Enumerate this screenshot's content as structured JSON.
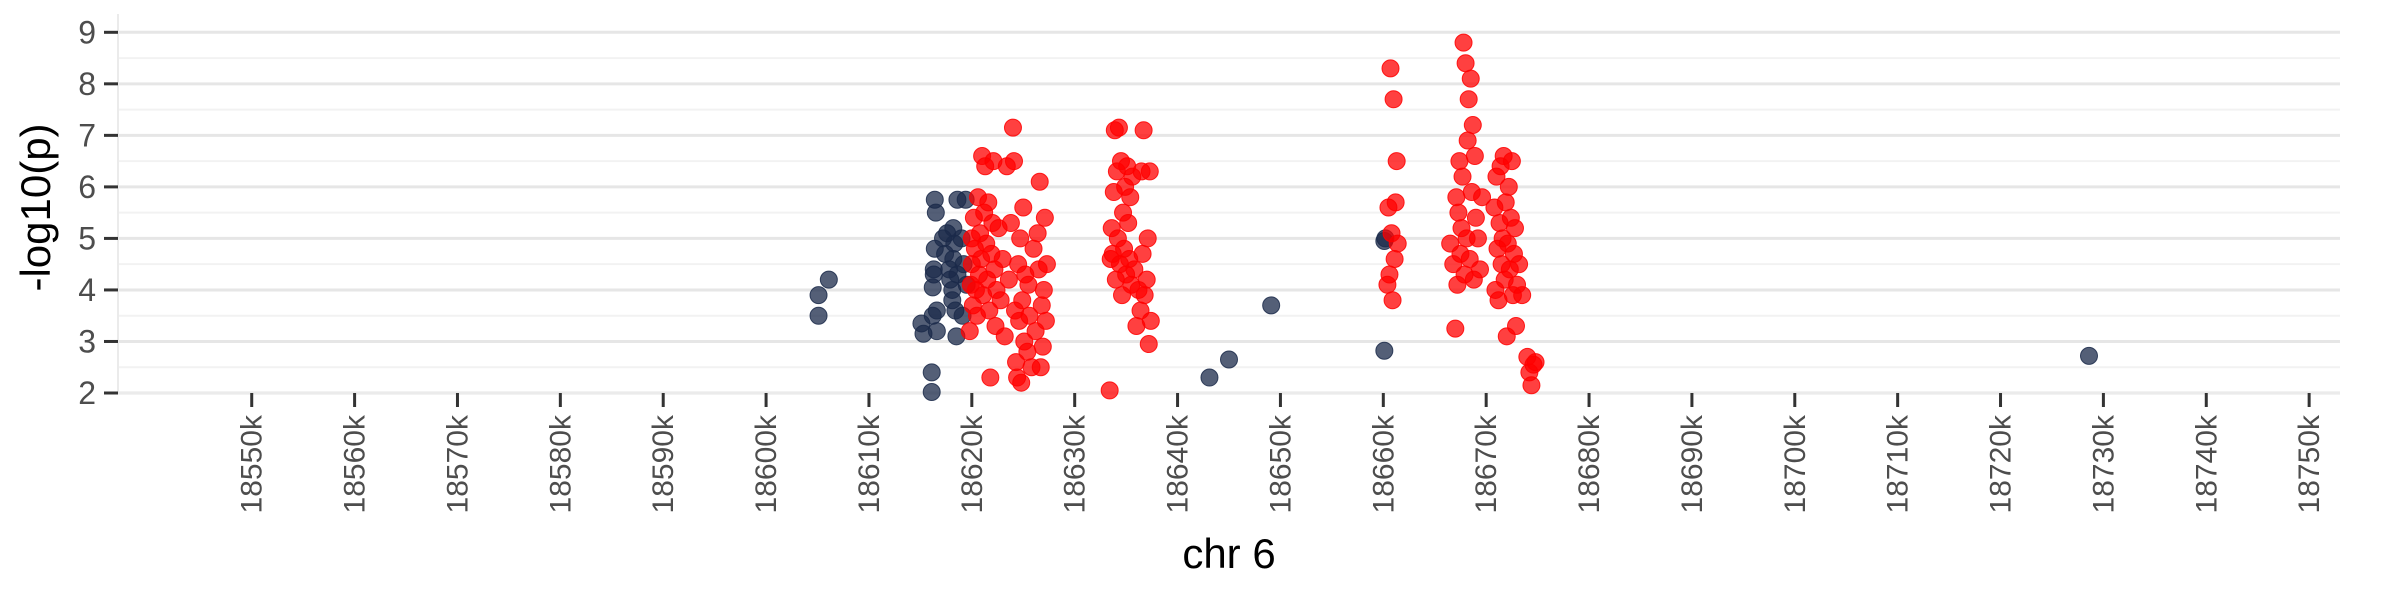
{
  "chart_data": {
    "type": "scatter",
    "xlabel": "chr 6",
    "ylabel": "-log10(p)",
    "xlim": [
      18537,
      18753
    ],
    "ylim": [
      2,
      9.2
    ],
    "x_unit": "bp",
    "x_ticks": [
      18550,
      18560,
      18570,
      18580,
      18590,
      18600,
      18610,
      18620,
      18630,
      18640,
      18650,
      18660,
      18670,
      18680,
      18690,
      18700,
      18710,
      18720,
      18730,
      18740,
      18750
    ],
    "x_tick_labels": [
      "18550k",
      "18560k",
      "18570k",
      "18580k",
      "18590k",
      "18600k",
      "18610k",
      "18620k",
      "18630k",
      "18640k",
      "18650k",
      "18660k",
      "18670k",
      "18680k",
      "18690k",
      "18700k",
      "18710k",
      "18720k",
      "18730k",
      "18740k",
      "18750k"
    ],
    "y_ticks": [
      2,
      3,
      4,
      5,
      6,
      7,
      8,
      9
    ],
    "y_tick_labels": [
      "2",
      "3",
      "4",
      "5",
      "6",
      "7",
      "8",
      "9"
    ],
    "grid": true,
    "legend": "none",
    "series": [
      {
        "color": "#1b2a4a",
        "points": [
          [
            18605.1,
            3.9
          ],
          [
            18605.1,
            3.5
          ],
          [
            18606.1,
            4.2
          ],
          [
            18615.1,
            3.35
          ],
          [
            18615.3,
            3.15
          ],
          [
            18616.1,
            2.4
          ],
          [
            18616.1,
            2.02
          ],
          [
            18616.2,
            3.5
          ],
          [
            18616.2,
            4.05
          ],
          [
            18616.3,
            4.3
          ],
          [
            18616.3,
            4.4
          ],
          [
            18616.4,
            4.8
          ],
          [
            18616.4,
            5.75
          ],
          [
            18616.5,
            5.5
          ],
          [
            18616.6,
            3.6
          ],
          [
            18616.6,
            3.2
          ],
          [
            18617.2,
            5.0
          ],
          [
            18617.4,
            4.7
          ],
          [
            18617.6,
            5.1
          ],
          [
            18617.8,
            4.4
          ],
          [
            18617.9,
            4.2
          ],
          [
            18618.1,
            3.8
          ],
          [
            18618.1,
            4.0
          ],
          [
            18618.2,
            4.6
          ],
          [
            18618.2,
            5.2
          ],
          [
            18618.3,
            4.9
          ],
          [
            18618.4,
            3.6
          ],
          [
            18618.5,
            3.1
          ],
          [
            18618.6,
            4.3
          ],
          [
            18618.6,
            5.75
          ],
          [
            18619.0,
            5.0
          ],
          [
            18619.1,
            3.5
          ],
          [
            18619.2,
            4.5
          ],
          [
            18619.4,
            5.75
          ],
          [
            18619.5,
            4.1
          ],
          [
            18643.1,
            2.3
          ],
          [
            18645.0,
            2.65
          ],
          [
            18649.1,
            3.7
          ],
          [
            18660.1,
            2.82
          ],
          [
            18660.1,
            4.95
          ],
          [
            18660.2,
            5.0
          ],
          [
            18728.6,
            2.72
          ]
        ]
      },
      {
        "color": "#ff0000",
        "points": [
          [
            18619.8,
            3.2
          ],
          [
            18619.9,
            4.1
          ],
          [
            18620.0,
            5.0
          ],
          [
            18620.0,
            4.5
          ],
          [
            18620.1,
            3.7
          ],
          [
            18620.2,
            5.4
          ],
          [
            18620.3,
            4.8
          ],
          [
            18620.4,
            4.0
          ],
          [
            18620.5,
            3.5
          ],
          [
            18620.6,
            5.8
          ],
          [
            18620.7,
            4.3
          ],
          [
            18620.8,
            5.1
          ],
          [
            18620.9,
            4.6
          ],
          [
            18621.0,
            6.6
          ],
          [
            18621.1,
            3.9
          ],
          [
            18621.2,
            5.5
          ],
          [
            18621.3,
            6.4
          ],
          [
            18621.4,
            4.9
          ],
          [
            18621.5,
            4.2
          ],
          [
            18621.6,
            5.7
          ],
          [
            18621.7,
            3.6
          ],
          [
            18621.8,
            2.3
          ],
          [
            18621.9,
            4.7
          ],
          [
            18622.0,
            5.3
          ],
          [
            18622.1,
            6.5
          ],
          [
            18622.2,
            4.4
          ],
          [
            18622.3,
            3.3
          ],
          [
            18622.4,
            4.0
          ],
          [
            18622.6,
            5.2
          ],
          [
            18622.8,
            3.8
          ],
          [
            18623.0,
            4.6
          ],
          [
            18623.2,
            3.1
          ],
          [
            18623.4,
            6.4
          ],
          [
            18623.6,
            4.2
          ],
          [
            18623.8,
            5.3
          ],
          [
            18624.0,
            7.15
          ],
          [
            18624.1,
            6.5
          ],
          [
            18624.2,
            3.6
          ],
          [
            18624.3,
            2.6
          ],
          [
            18624.4,
            2.3
          ],
          [
            18624.5,
            4.5
          ],
          [
            18624.6,
            3.4
          ],
          [
            18624.7,
            5.0
          ],
          [
            18624.8,
            2.2
          ],
          [
            18624.9,
            3.8
          ],
          [
            18625.0,
            5.6
          ],
          [
            18625.1,
            3.0
          ],
          [
            18625.2,
            4.3
          ],
          [
            18625.4,
            2.8
          ],
          [
            18625.5,
            4.1
          ],
          [
            18625.6,
            3.5
          ],
          [
            18625.8,
            2.5
          ],
          [
            18626.0,
            4.8
          ],
          [
            18626.2,
            3.2
          ],
          [
            18626.4,
            5.1
          ],
          [
            18626.5,
            4.4
          ],
          [
            18626.6,
            6.1
          ],
          [
            18626.7,
            2.5
          ],
          [
            18626.8,
            3.7
          ],
          [
            18626.9,
            2.9
          ],
          [
            18627.0,
            4.0
          ],
          [
            18627.1,
            5.4
          ],
          [
            18627.2,
            3.4
          ],
          [
            18627.3,
            4.5
          ],
          [
            18633.4,
            2.05
          ],
          [
            18633.5,
            4.6
          ],
          [
            18633.6,
            5.2
          ],
          [
            18633.7,
            4.7
          ],
          [
            18633.8,
            5.9
          ],
          [
            18633.9,
            7.1
          ],
          [
            18634.0,
            4.2
          ],
          [
            18634.1,
            6.3
          ],
          [
            18634.2,
            5.0
          ],
          [
            18634.3,
            7.15
          ],
          [
            18634.4,
            4.5
          ],
          [
            18634.5,
            6.5
          ],
          [
            18634.6,
            3.9
          ],
          [
            18634.7,
            5.5
          ],
          [
            18634.8,
            4.8
          ],
          [
            18634.9,
            6.0
          ],
          [
            18635.0,
            4.3
          ],
          [
            18635.1,
            6.4
          ],
          [
            18635.2,
            5.3
          ],
          [
            18635.3,
            4.6
          ],
          [
            18635.4,
            5.8
          ],
          [
            18635.5,
            4.1
          ],
          [
            18635.6,
            6.2
          ],
          [
            18635.8,
            4.4
          ],
          [
            18636.0,
            3.3
          ],
          [
            18636.2,
            4.0
          ],
          [
            18636.4,
            3.6
          ],
          [
            18636.5,
            6.3
          ],
          [
            18636.6,
            4.7
          ],
          [
            18636.7,
            7.1
          ],
          [
            18636.8,
            3.9
          ],
          [
            18637.0,
            4.2
          ],
          [
            18637.1,
            5.0
          ],
          [
            18637.2,
            2.95
          ],
          [
            18637.3,
            6.3
          ],
          [
            18637.4,
            3.4
          ],
          [
            18660.4,
            4.1
          ],
          [
            18660.5,
            5.6
          ],
          [
            18660.6,
            4.3
          ],
          [
            18660.7,
            8.3
          ],
          [
            18660.8,
            5.1
          ],
          [
            18660.9,
            3.8
          ],
          [
            18661.0,
            7.7
          ],
          [
            18661.1,
            4.6
          ],
          [
            18661.2,
            5.7
          ],
          [
            18661.3,
            6.5
          ],
          [
            18661.4,
            4.9
          ],
          [
            18666.5,
            4.9
          ],
          [
            18666.8,
            4.5
          ],
          [
            18667.0,
            3.25
          ],
          [
            18667.1,
            5.8
          ],
          [
            18667.2,
            4.1
          ],
          [
            18667.3,
            5.5
          ],
          [
            18667.4,
            6.5
          ],
          [
            18667.5,
            4.7
          ],
          [
            18667.6,
            5.2
          ],
          [
            18667.7,
            6.2
          ],
          [
            18667.8,
            8.8
          ],
          [
            18667.9,
            4.3
          ],
          [
            18668.0,
            8.4
          ],
          [
            18668.1,
            5.0
          ],
          [
            18668.2,
            6.9
          ],
          [
            18668.3,
            7.7
          ],
          [
            18668.4,
            4.6
          ],
          [
            18668.5,
            8.1
          ],
          [
            18668.6,
            5.9
          ],
          [
            18668.7,
            7.2
          ],
          [
            18668.8,
            4.2
          ],
          [
            18668.9,
            6.6
          ],
          [
            18669.0,
            5.4
          ],
          [
            18669.2,
            5.0
          ],
          [
            18669.4,
            4.4
          ],
          [
            18669.6,
            5.8
          ],
          [
            18670.8,
            5.6
          ],
          [
            18670.9,
            4.0
          ],
          [
            18671.0,
            6.2
          ],
          [
            18671.1,
            4.8
          ],
          [
            18671.2,
            3.8
          ],
          [
            18671.3,
            5.3
          ],
          [
            18671.4,
            6.4
          ],
          [
            18671.5,
            4.5
          ],
          [
            18671.6,
            5.0
          ],
          [
            18671.7,
            6.6
          ],
          [
            18671.8,
            4.2
          ],
          [
            18671.9,
            5.7
          ],
          [
            18672.0,
            3.1
          ],
          [
            18672.1,
            4.9
          ],
          [
            18672.2,
            6.0
          ],
          [
            18672.3,
            4.4
          ],
          [
            18672.4,
            5.4
          ],
          [
            18672.5,
            6.5
          ],
          [
            18672.6,
            3.9
          ],
          [
            18672.7,
            4.7
          ],
          [
            18672.8,
            5.2
          ],
          [
            18672.9,
            3.3
          ],
          [
            18673.0,
            4.1
          ],
          [
            18673.2,
            4.5
          ],
          [
            18673.5,
            3.9
          ],
          [
            18674.0,
            2.7
          ],
          [
            18674.2,
            2.4
          ],
          [
            18674.4,
            2.15
          ],
          [
            18674.6,
            2.55
          ],
          [
            18674.8,
            2.6
          ]
        ]
      }
    ]
  }
}
